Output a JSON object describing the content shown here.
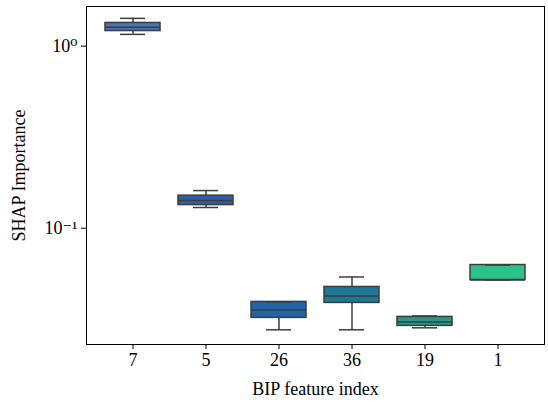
{
  "chart_data": {
    "type": "box",
    "x_label": "BIP feature index",
    "y_label": "SHAP Importance",
    "categories": [
      "7",
      "5",
      "26",
      "36",
      "19",
      "1"
    ],
    "min": [
      1.16,
      0.13,
      0.0277,
      0.0277,
      0.0284,
      0.052
    ],
    "q1": [
      1.21,
      0.134,
      0.0322,
      0.0389,
      0.0291,
      0.052
    ],
    "median": [
      1.27,
      0.142,
      0.0356,
      0.0425,
      0.0306,
      0.052
    ],
    "q3": [
      1.34,
      0.151,
      0.0394,
      0.0476,
      0.0326,
      0.0628
    ],
    "max": [
      1.42,
      0.161,
      0.0394,
      0.054,
      0.033,
      0.0628
    ],
    "colors": [
      "#4a74b6",
      "#2f5ea8",
      "#2165a6",
      "#1b7896",
      "#22998b",
      "#2cc38a"
    ],
    "log": "y",
    "ylim": [
      0.023,
      1.65
    ],
    "yticks": [
      {
        "value": 0.1,
        "label": "10⁻¹"
      },
      {
        "value": 1,
        "label": "10⁰"
      }
    ],
    "grid": false
  }
}
